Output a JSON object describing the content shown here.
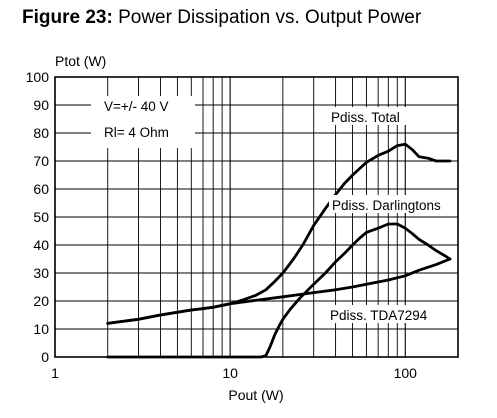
{
  "figure": {
    "number": "Figure 23:",
    "title": "Power Dissipation vs. Output Power"
  },
  "chart_data": {
    "type": "line",
    "xscale": "log",
    "xlim": [
      1,
      200
    ],
    "ylim": [
      0,
      100
    ],
    "xlabel": "Pout (W)",
    "ylabel": "Ptot (W)",
    "x_ticks": [
      1,
      10,
      100
    ],
    "y_ticks": [
      0,
      10,
      20,
      30,
      40,
      50,
      60,
      70,
      80,
      90,
      100
    ],
    "grid": true,
    "conditions": [
      "V=+/- 40 V",
      "Rl= 4 Ohm"
    ],
    "series": [
      {
        "name": "Pdiss. Total",
        "x": [
          2,
          3,
          4,
          5,
          6,
          7,
          8,
          10,
          12,
          14,
          16,
          18,
          20,
          23,
          26,
          30,
          35,
          40,
          45,
          50,
          60,
          70,
          80,
          90,
          100,
          110,
          120,
          135,
          150,
          170,
          180
        ],
        "y": [
          12,
          13.5,
          15,
          16,
          16.8,
          17.3,
          17.8,
          19,
          20.5,
          22,
          24,
          27,
          30,
          35,
          40,
          47,
          53,
          58,
          62,
          65,
          69.5,
          72,
          73.5,
          75.5,
          76,
          74,
          71.5,
          71,
          70,
          70,
          70
        ]
      },
      {
        "name": "Pdiss. Darlingtons",
        "x": [
          2,
          5,
          10,
          14,
          15,
          16,
          17,
          18,
          19,
          20,
          22,
          25,
          30,
          35,
          40,
          45,
          50,
          55,
          60,
          70,
          80,
          90,
          100,
          110,
          120,
          135,
          150,
          170,
          180
        ],
        "y": [
          0,
          0,
          0,
          0,
          0,
          0.5,
          4,
          8,
          11,
          13.5,
          17,
          21,
          26,
          30,
          34,
          37,
          40,
          42.5,
          44.5,
          46,
          47.5,
          47.5,
          46,
          44,
          42,
          40,
          38,
          36,
          35
        ]
      },
      {
        "name": "Pdiss. TDA7294",
        "x": [
          2,
          3,
          4,
          5,
          6,
          7,
          8,
          10,
          15,
          20,
          30,
          40,
          50,
          60,
          80,
          100,
          120,
          150,
          180
        ],
        "y": [
          12,
          13.5,
          15,
          16,
          16.8,
          17.3,
          17.8,
          19,
          20.5,
          21.5,
          23,
          24,
          25,
          26,
          27.5,
          29,
          31,
          33,
          35
        ]
      }
    ],
    "series_labels": [
      "Pdiss. Total",
      "Pdiss. Darlingtons",
      "Pdiss. TDA7294"
    ]
  }
}
